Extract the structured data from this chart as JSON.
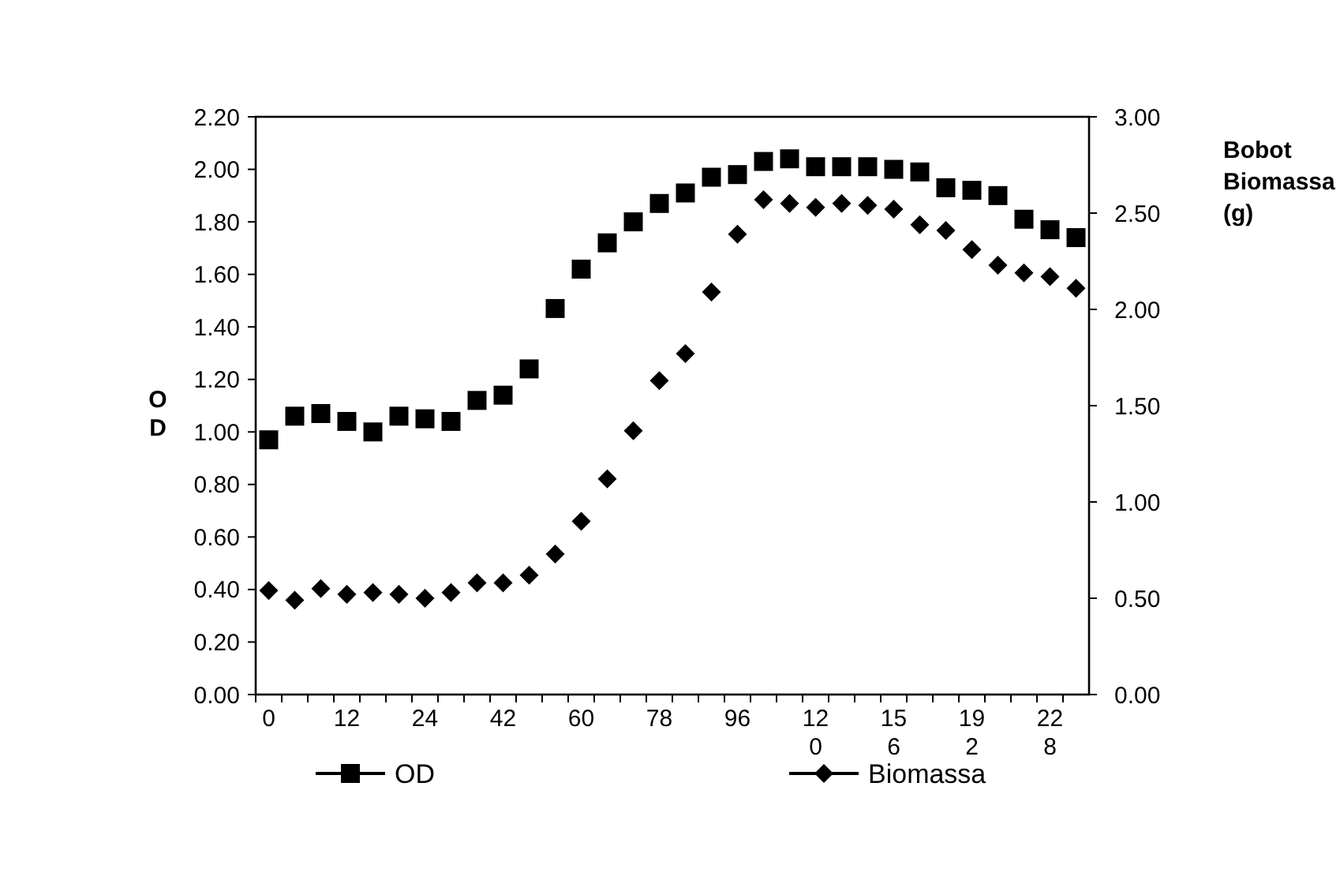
{
  "chart_data": {
    "type": "scatter",
    "ylabel": "OD",
    "y2label": "Bobot Biomassa (g)",
    "categories": [
      "0",
      null,
      null,
      "12",
      null,
      null,
      "24",
      null,
      null,
      "42",
      null,
      null,
      "60",
      null,
      null,
      "78",
      null,
      null,
      "96",
      null,
      null,
      "120",
      null,
      null,
      "156",
      null,
      null,
      "192",
      null,
      null,
      "228",
      null
    ],
    "series": [
      {
        "name": "OD",
        "color": "#000000",
        "marker": "square",
        "values": [
          0.97,
          1.06,
          1.07,
          1.04,
          1.0,
          1.06,
          1.05,
          1.04,
          1.12,
          1.14,
          1.24,
          1.47,
          1.62,
          1.72,
          1.8,
          1.87,
          1.91,
          1.97,
          1.98,
          2.03,
          2.04,
          2.01,
          2.01,
          2.01,
          2.0,
          1.99,
          1.93,
          1.92,
          1.9,
          1.81,
          1.77,
          1.74
        ]
      },
      {
        "name": "Biomassa",
        "color": "#000000",
        "marker": "diamond",
        "axis": "y2",
        "values": [
          0.54,
          0.49,
          0.55,
          0.52,
          0.53,
          0.52,
          0.5,
          0.53,
          0.58,
          0.58,
          0.62,
          0.73,
          0.9,
          1.12,
          1.37,
          1.63,
          1.77,
          2.09,
          2.39,
          2.57,
          2.55,
          2.53,
          2.55,
          2.54,
          2.52,
          2.44,
          2.41,
          2.31,
          2.23,
          2.19,
          2.17,
          2.11
        ]
      }
    ],
    "ylim": [
      0,
      2.2
    ],
    "yticks": [
      {
        "value": 0,
        "label": "0.00"
      },
      {
        "value": 0.2,
        "label": "0.20"
      },
      {
        "value": 0.4,
        "label": "0.40"
      },
      {
        "value": 0.6,
        "label": "0.60"
      },
      {
        "value": 0.8,
        "label": "0.80"
      },
      {
        "value": 1.0,
        "label": "1.00"
      },
      {
        "value": 1.2,
        "label": "1.20"
      },
      {
        "value": 1.4,
        "label": "1.40"
      },
      {
        "value": 1.6,
        "label": "1.60"
      },
      {
        "value": 1.8,
        "label": "1.80"
      },
      {
        "value": 2.0,
        "label": "2.00"
      },
      {
        "value": 2.2,
        "label": "2.20"
      }
    ],
    "y2lim": [
      0,
      3
    ],
    "y2ticks": [
      {
        "value": 0,
        "label": "0.00"
      },
      {
        "value": 0.5,
        "label": "0.50"
      },
      {
        "value": 1.0,
        "label": "1.00"
      },
      {
        "value": 1.5,
        "label": "1.50"
      },
      {
        "value": 2.0,
        "label": "2.00"
      },
      {
        "value": 2.5,
        "label": "2.50"
      },
      {
        "value": 3.0,
        "label": "3.00"
      }
    ],
    "legend": "bottom",
    "grid": false
  }
}
